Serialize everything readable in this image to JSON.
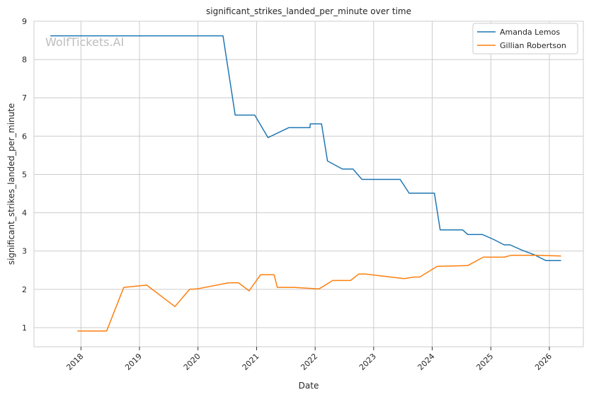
{
  "chart_data": {
    "type": "line",
    "title": "significant_strikes_landed_per_minute over time",
    "xlabel": "Date",
    "ylabel": "significant_strikes_landed_per_minute",
    "watermark": "WolfTickets.AI",
    "x_tick_labels": [
      "2018",
      "2019",
      "2020",
      "2021",
      "2022",
      "2023",
      "2024",
      "2025",
      "2026"
    ],
    "y_tick_labels": [
      "1",
      "2",
      "3",
      "4",
      "5",
      "6",
      "7",
      "8",
      "9"
    ],
    "ylim": [
      0.5,
      9
    ],
    "xlim": [
      "2017-03-14",
      "2026-08-01"
    ],
    "grid": true,
    "legend_position": "top-right",
    "series": [
      {
        "name": "Amanda Lemos",
        "color": "#1f77b4",
        "points": [
          [
            "2017-06-24",
            8.62
          ],
          [
            "2020-06-05",
            8.62
          ],
          [
            "2020-08-20",
            6.55
          ],
          [
            "2020-12-20",
            6.55
          ],
          [
            "2021-03-13",
            5.96
          ],
          [
            "2021-07-20",
            6.22
          ],
          [
            "2021-11-30",
            6.22
          ],
          [
            "2021-12-01",
            6.32
          ],
          [
            "2022-02-10",
            6.32
          ],
          [
            "2022-03-19",
            5.35
          ],
          [
            "2022-06-20",
            5.14
          ],
          [
            "2022-08-25",
            5.14
          ],
          [
            "2022-10-20",
            4.87
          ],
          [
            "2023-06-15",
            4.87
          ],
          [
            "2023-08-10",
            4.51
          ],
          [
            "2024-01-15",
            4.51
          ],
          [
            "2024-02-20",
            3.55
          ],
          [
            "2024-07-10",
            3.55
          ],
          [
            "2024-08-10",
            3.43
          ],
          [
            "2024-11-10",
            3.43
          ],
          [
            "2025-01-20",
            3.3
          ],
          [
            "2025-03-25",
            3.16
          ],
          [
            "2025-05-01",
            3.16
          ],
          [
            "2025-07-15",
            3.02
          ],
          [
            "2025-09-30",
            2.9
          ],
          [
            "2025-12-10",
            2.75
          ],
          [
            "2026-03-15",
            2.75
          ]
        ]
      },
      {
        "name": "Gillian Robertson",
        "color": "#ff7f0e",
        "points": [
          [
            "2017-12-10",
            0.91
          ],
          [
            "2018-06-10",
            0.91
          ],
          [
            "2018-09-25",
            2.05
          ],
          [
            "2019-02-15",
            2.11
          ],
          [
            "2019-08-10",
            1.55
          ],
          [
            "2019-11-10",
            2.0
          ],
          [
            "2019-12-25",
            2.01
          ],
          [
            "2020-07-10",
            2.17
          ],
          [
            "2020-09-10",
            2.17
          ],
          [
            "2020-11-15",
            1.96
          ],
          [
            "2021-01-25",
            2.38
          ],
          [
            "2021-04-20",
            2.38
          ],
          [
            "2021-05-10",
            2.05
          ],
          [
            "2021-08-20",
            2.05
          ],
          [
            "2022-01-25",
            2.01
          ],
          [
            "2022-04-20",
            2.23
          ],
          [
            "2022-08-10",
            2.23
          ],
          [
            "2022-09-30",
            2.4
          ],
          [
            "2022-11-10",
            2.4
          ],
          [
            "2023-07-10",
            2.28
          ],
          [
            "2023-09-10",
            2.32
          ],
          [
            "2023-10-15",
            2.32
          ],
          [
            "2024-02-01",
            2.6
          ],
          [
            "2024-08-10",
            2.62
          ],
          [
            "2024-11-15",
            2.84
          ],
          [
            "2025-03-25",
            2.84
          ],
          [
            "2025-05-10",
            2.89
          ],
          [
            "2025-10-01",
            2.89
          ],
          [
            "2026-03-15",
            2.87
          ]
        ]
      }
    ]
  }
}
